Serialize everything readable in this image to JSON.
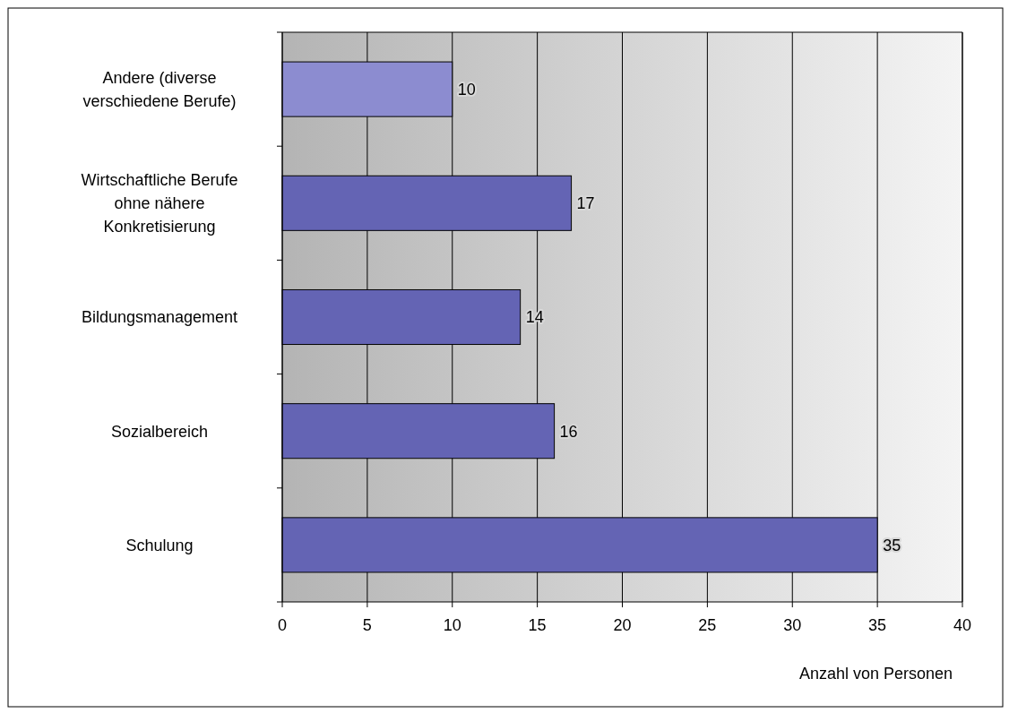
{
  "chart_data": {
    "type": "bar",
    "orientation": "horizontal",
    "xlabel": "Anzahl von Personen",
    "categories": [
      "Andere (diverse verschiedene Berufe)",
      "Wirtschaftliche Berufe ohne nähere Konkretisierung",
      "Bildungsmanagement",
      "Sozialbereich",
      "Schulung"
    ],
    "values": [
      10,
      17,
      14,
      16,
      35
    ],
    "colors": [
      "#8c8cd0",
      "#6464b4",
      "#6464b4",
      "#6464b4",
      "#6464b4"
    ],
    "xlim": [
      0,
      40
    ],
    "xticks": [
      0,
      5,
      10,
      15,
      20,
      25,
      30,
      35,
      40
    ],
    "grid": "x",
    "data_labels": true
  }
}
